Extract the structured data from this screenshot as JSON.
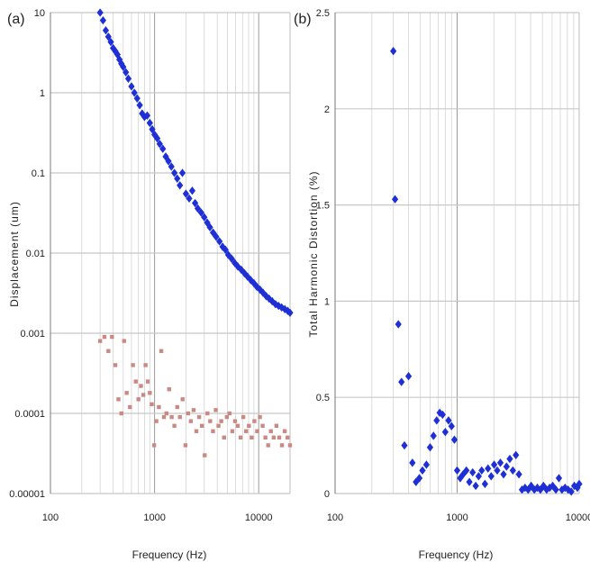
{
  "chart_data": [
    {
      "panel_label": "(a)",
      "type": "scatter",
      "xlabel": "Frequency (Hz)",
      "ylabel": "Displacement (um)",
      "x_scale": "log",
      "y_scale": "log",
      "xlim": [
        100,
        20000
      ],
      "ylim": [
        1e-05,
        10
      ],
      "x_ticks": [
        "100",
        "1000",
        "10000"
      ],
      "y_ticks": [
        "0.00001",
        "0.0001",
        "0.001",
        "0.01",
        "0.1",
        "1",
        "10"
      ],
      "grid": true,
      "series": [
        {
          "color": "#1f2fd6",
          "marker": "diamond",
          "x": [
            300,
            320,
            340,
            360,
            380,
            400,
            420,
            440,
            460,
            480,
            500,
            530,
            560,
            600,
            640,
            680,
            720,
            760,
            800,
            850,
            900,
            950,
            1000,
            1060,
            1120,
            1200,
            1280,
            1360,
            1450,
            1550,
            1650,
            1750,
            1850,
            2000,
            2150,
            2300,
            2450,
            2600,
            2800,
            3000,
            3200,
            3400,
            3650,
            3900,
            4200,
            4500,
            4800,
            5100,
            5500,
            5900,
            6300,
            6800,
            7300,
            7800,
            8400,
            9000,
            9600,
            10300,
            11000,
            11800,
            12600,
            13500,
            14500,
            15500,
            16600,
            17800,
            19000,
            20000
          ],
          "y": [
            10,
            8,
            6,
            5,
            4.3,
            3.6,
            3.3,
            3,
            2.6,
            2.3,
            2.1,
            1.8,
            1.5,
            1.2,
            1.0,
            0.85,
            0.7,
            0.55,
            0.5,
            0.52,
            0.42,
            0.35,
            0.3,
            0.27,
            0.23,
            0.2,
            0.16,
            0.14,
            0.12,
            0.1,
            0.085,
            0.07,
            0.1,
            0.055,
            0.048,
            0.06,
            0.042,
            0.036,
            0.032,
            0.028,
            0.024,
            0.021,
            0.018,
            0.016,
            0.014,
            0.012,
            0.011,
            0.0095,
            0.0085,
            0.0075,
            0.0068,
            0.0062,
            0.0056,
            0.0051,
            0.0046,
            0.0042,
            0.0038,
            0.0035,
            0.0032,
            0.0029,
            0.0027,
            0.0025,
            0.0023,
            0.0022,
            0.0021,
            0.002,
            0.0019,
            0.0018
          ]
        },
        {
          "color": "#c98a84",
          "marker": "square",
          "x": [
            300,
            330,
            360,
            390,
            420,
            450,
            480,
            510,
            540,
            580,
            620,
            660,
            700,
            740,
            780,
            820,
            860,
            900,
            940,
            990,
            1040,
            1100,
            1160,
            1230,
            1300,
            1380,
            1460,
            1550,
            1650,
            1750,
            1860,
            1980,
            2100,
            2230,
            2370,
            2520,
            2680,
            2850,
            3030,
            3220,
            3420,
            3640,
            3870,
            4110,
            4370,
            4650,
            4940,
            5250,
            5580,
            5930,
            6300,
            6700,
            7120,
            7570,
            8050,
            8550,
            9090,
            9660,
            10270,
            10910,
            11600,
            12330,
            13100,
            13930,
            14800,
            15740,
            16730,
            17780,
            18900,
            20000
          ],
          "y": [
            0.0008,
            0.0009,
            0.0006,
            0.0009,
            0.0004,
            0.00015,
            0.0001,
            0.0008,
            0.00018,
            0.00012,
            0.0004,
            0.00025,
            0.00015,
            0.00022,
            0.00017,
            0.0004,
            0.00025,
            0.00018,
            0.00013,
            4e-05,
            8e-05,
            0.00012,
            0.0006,
            9e-05,
            0.0001,
            0.0002,
            9e-05,
            7e-05,
            0.00012,
            9e-05,
            0.00015,
            4e-05,
            0.0001,
            8e-05,
            0.00011,
            6e-05,
            9e-05,
            7e-05,
            3e-05,
            0.0001,
            8e-05,
            6e-05,
            0.00011,
            7e-05,
            8e-05,
            5e-05,
            9e-05,
            0.0001,
            6e-05,
            8e-05,
            7e-05,
            5e-05,
            9e-05,
            6e-05,
            7e-05,
            5e-05,
            8e-05,
            6e-05,
            9e-05,
            7e-05,
            5e-05,
            4e-05,
            6e-05,
            5e-05,
            7e-05,
            5e-05,
            4e-05,
            6e-05,
            5e-05,
            4e-05
          ]
        }
      ]
    },
    {
      "panel_label": "(b)",
      "type": "scatter",
      "xlabel": "Frequency (Hz)",
      "ylabel": "Total Harmonic Distortion (%)",
      "x_scale": "log",
      "y_scale": "linear",
      "xlim": [
        100,
        10000
      ],
      "ylim": [
        0,
        2.5
      ],
      "x_ticks": [
        "100",
        "1000",
        "10000"
      ],
      "y_ticks": [
        "0",
        "0.5",
        "1",
        "1.5",
        "2",
        "2.5"
      ],
      "grid": true,
      "series": [
        {
          "color": "#1f2fd6",
          "marker": "diamond",
          "x": [
            300,
            310,
            330,
            350,
            370,
            400,
            430,
            460,
            490,
            520,
            560,
            600,
            640,
            680,
            720,
            760,
            800,
            850,
            900,
            950,
            1000,
            1060,
            1120,
            1190,
            1260,
            1340,
            1420,
            1500,
            1590,
            1690,
            1790,
            1900,
            2010,
            2130,
            2260,
            2400,
            2540,
            2700,
            2860,
            3030,
            3210,
            3400,
            3600,
            3820,
            4040,
            4290,
            4540,
            4810,
            5100,
            5410,
            5730,
            6070,
            6440,
            6820,
            7230,
            7660,
            8120,
            8610,
            9120,
            9660,
            10000
          ],
          "y": [
            2.3,
            1.53,
            0.88,
            0.58,
            0.25,
            0.61,
            0.16,
            0.06,
            0.08,
            0.12,
            0.15,
            0.24,
            0.3,
            0.38,
            0.42,
            0.41,
            0.32,
            0.38,
            0.35,
            0.28,
            0.12,
            0.08,
            0.1,
            0.12,
            0.06,
            0.11,
            0.04,
            0.09,
            0.12,
            0.05,
            0.13,
            0.09,
            0.15,
            0.12,
            0.16,
            0.1,
            0.14,
            0.18,
            0.12,
            0.2,
            0.1,
            0.02,
            0.03,
            0.02,
            0.04,
            0.02,
            0.03,
            0.02,
            0.04,
            0.02,
            0.03,
            0.04,
            0.02,
            0.08,
            0.02,
            0.03,
            0.02,
            0.01,
            0.04,
            0.03,
            0.05
          ]
        }
      ]
    }
  ]
}
